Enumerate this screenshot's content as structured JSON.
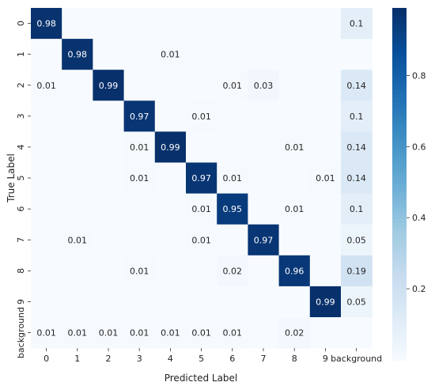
{
  "chart_data": {
    "type": "heatmap",
    "title": "",
    "xlabel": "Predicted Label",
    "ylabel": "True Label",
    "x_categories": [
      "0",
      "1",
      "2",
      "3",
      "4",
      "5",
      "6",
      "7",
      "8",
      "9",
      "background"
    ],
    "y_categories": [
      "0",
      "1",
      "2",
      "3",
      "4",
      "5",
      "6",
      "7",
      "8",
      "9",
      "background"
    ],
    "values": [
      [
        0.98,
        null,
        null,
        null,
        null,
        null,
        null,
        null,
        null,
        null,
        0.1
      ],
      [
        null,
        0.98,
        null,
        null,
        0.01,
        null,
        null,
        null,
        null,
        null,
        null
      ],
      [
        0.01,
        null,
        0.99,
        null,
        null,
        null,
        0.01,
        0.03,
        null,
        null,
        0.14
      ],
      [
        null,
        null,
        null,
        0.97,
        null,
        0.01,
        null,
        null,
        null,
        null,
        0.1
      ],
      [
        null,
        null,
        null,
        0.01,
        0.99,
        null,
        null,
        null,
        0.01,
        null,
        0.14
      ],
      [
        null,
        null,
        null,
        0.01,
        null,
        0.97,
        0.01,
        null,
        null,
        0.01,
        0.14
      ],
      [
        null,
        null,
        null,
        null,
        null,
        0.01,
        0.95,
        null,
        0.01,
        null,
        0.1
      ],
      [
        null,
        0.01,
        null,
        null,
        null,
        0.01,
        null,
        0.97,
        null,
        null,
        0.05
      ],
      [
        null,
        null,
        null,
        0.01,
        null,
        null,
        0.02,
        null,
        0.96,
        null,
        0.19
      ],
      [
        null,
        null,
        null,
        null,
        null,
        null,
        null,
        null,
        null,
        0.99,
        0.05
      ],
      [
        0.01,
        0.01,
        0.01,
        0.01,
        0.01,
        0.01,
        0.01,
        null,
        0.02,
        null,
        null
      ]
    ],
    "colorbar": {
      "colormap": "Blues",
      "vmin": 0.0,
      "vmax": 0.99,
      "ticks": [
        "0.2",
        "0.4",
        "0.6",
        "0.8"
      ],
      "tick_values": [
        0.2,
        0.4,
        0.6,
        0.8
      ]
    },
    "grid": false,
    "empty_cell_color": "#f7fbff"
  }
}
